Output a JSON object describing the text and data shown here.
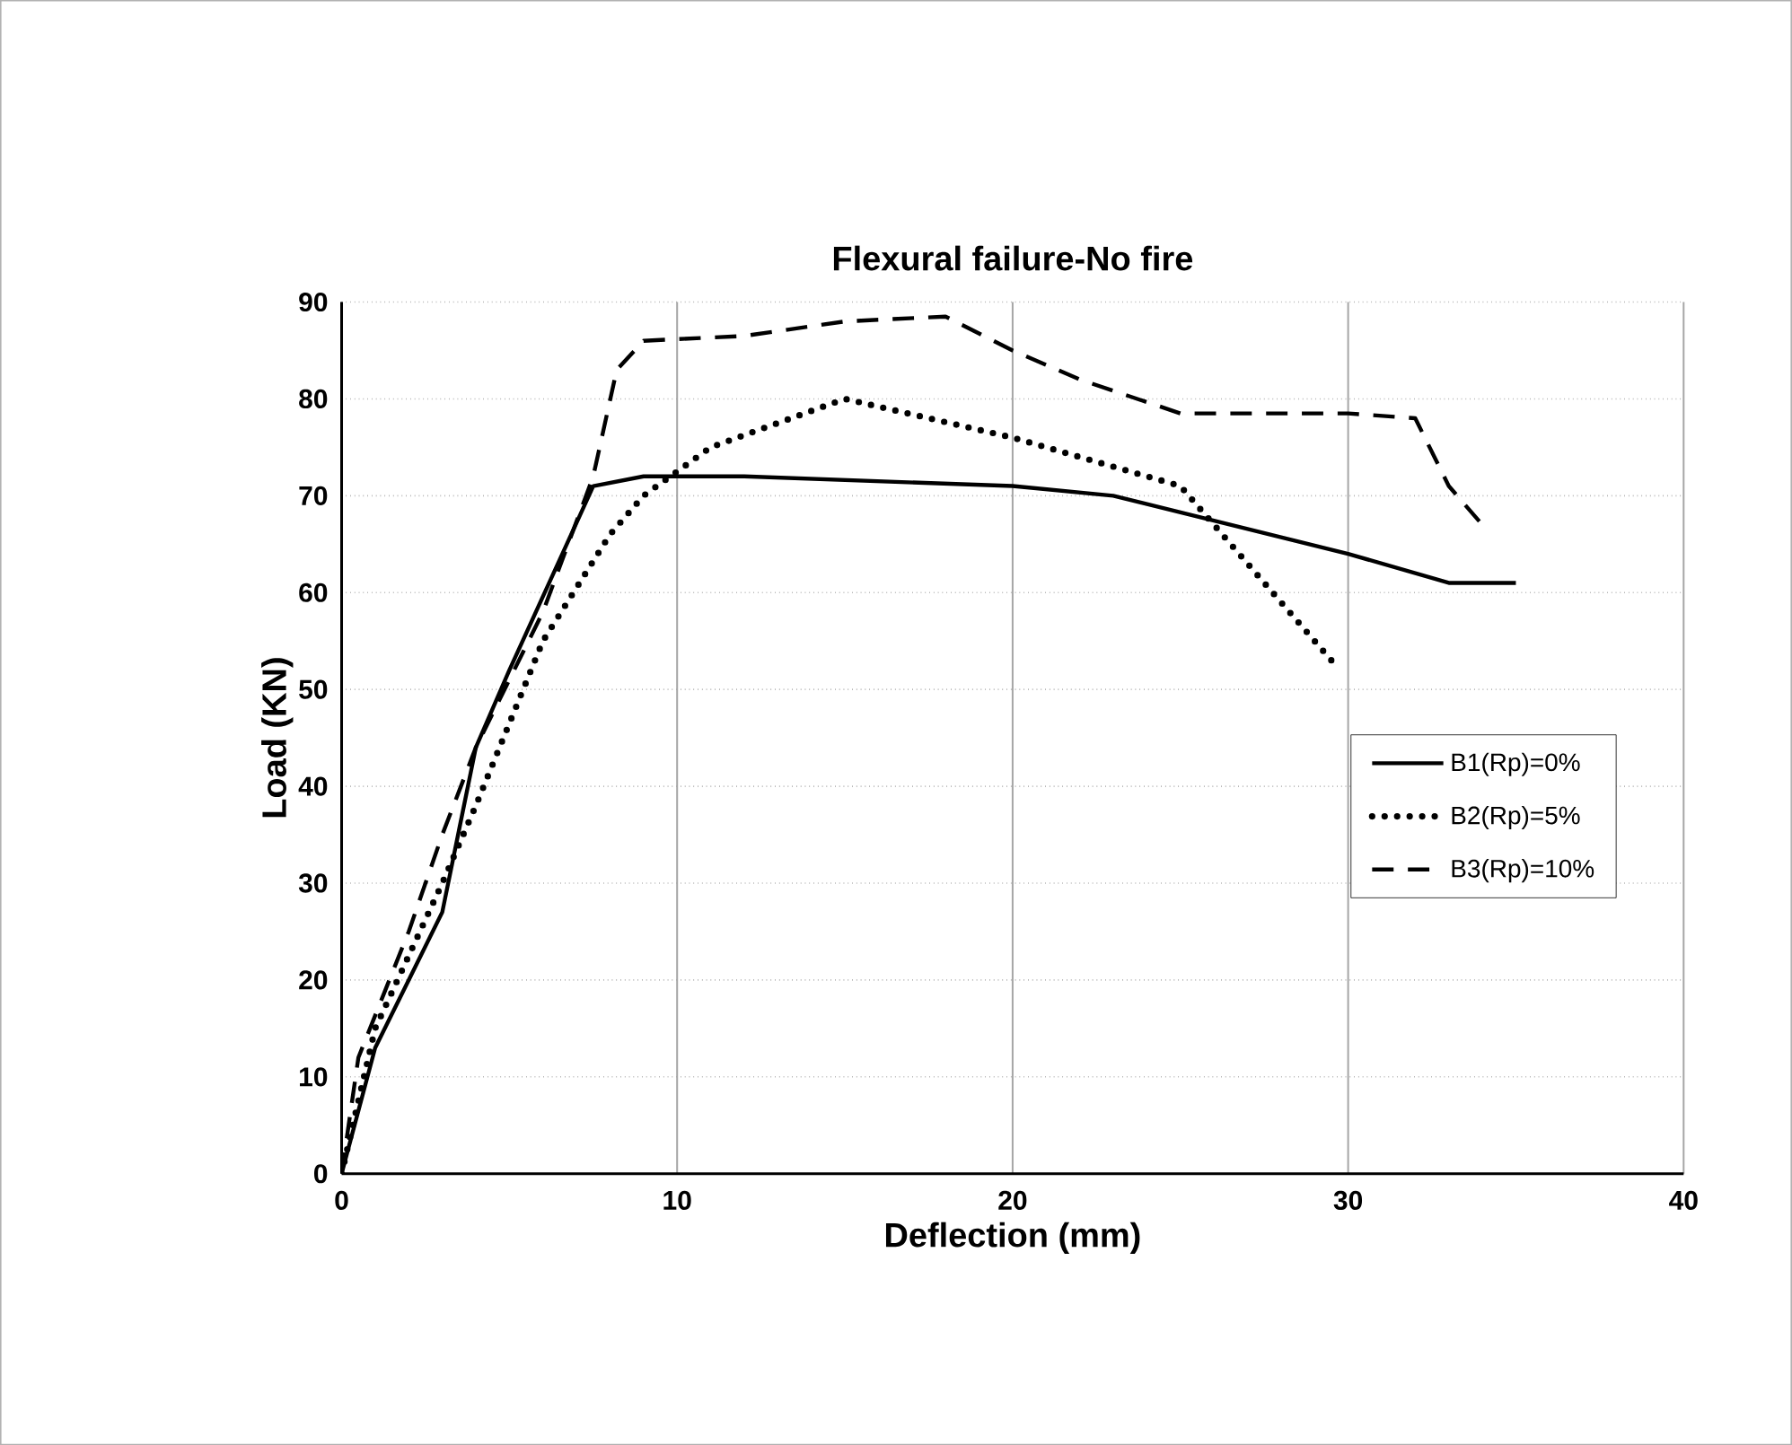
{
  "chart_data": {
    "type": "line",
    "title": "Flexural failure-No fire",
    "xlabel": "Deflection (mm)",
    "ylabel": "Load (KN)",
    "xlim": [
      0,
      40
    ],
    "xticks": [
      0,
      10,
      20,
      30,
      40
    ],
    "ylim": [
      0,
      90
    ],
    "yticks": [
      0,
      10,
      20,
      30,
      40,
      50,
      60,
      70,
      80,
      90
    ],
    "grid": true,
    "legend": "right",
    "marker": "none",
    "series": [
      {
        "name": "B1(Rp)=0%",
        "color": "#000000",
        "line_style": "solid",
        "x": [
          0,
          1,
          2,
          3,
          4,
          5,
          7.5,
          9,
          12,
          20,
          23,
          30,
          33,
          35
        ],
        "values": [
          0,
          13,
          20,
          27,
          44,
          52,
          71,
          72,
          72,
          71,
          70,
          64,
          61,
          61
        ]
      },
      {
        "name": "B2(Rp)=5%",
        "color": "#000000",
        "line_style": "dotted",
        "x": [
          0,
          1,
          3,
          4,
          6,
          8,
          9,
          11,
          15,
          20,
          25,
          27,
          29.5
        ],
        "values": [
          0,
          15,
          30,
          38,
          55,
          66,
          70,
          75,
          80,
          76,
          71,
          63,
          53
        ]
      },
      {
        "name": "B3(Rp)=10%",
        "color": "#000000",
        "line_style": "dashed",
        "x": [
          0,
          0.5,
          2,
          3,
          4,
          6,
          7.5,
          8.2,
          9,
          12,
          15,
          18,
          20,
          22,
          25,
          30,
          32,
          33,
          34
        ],
        "values": [
          0,
          12,
          25,
          35,
          44,
          58,
          72,
          83,
          86,
          86.5,
          88,
          88.5,
          85,
          82,
          78.5,
          78.5,
          78,
          71,
          67
        ]
      }
    ]
  }
}
